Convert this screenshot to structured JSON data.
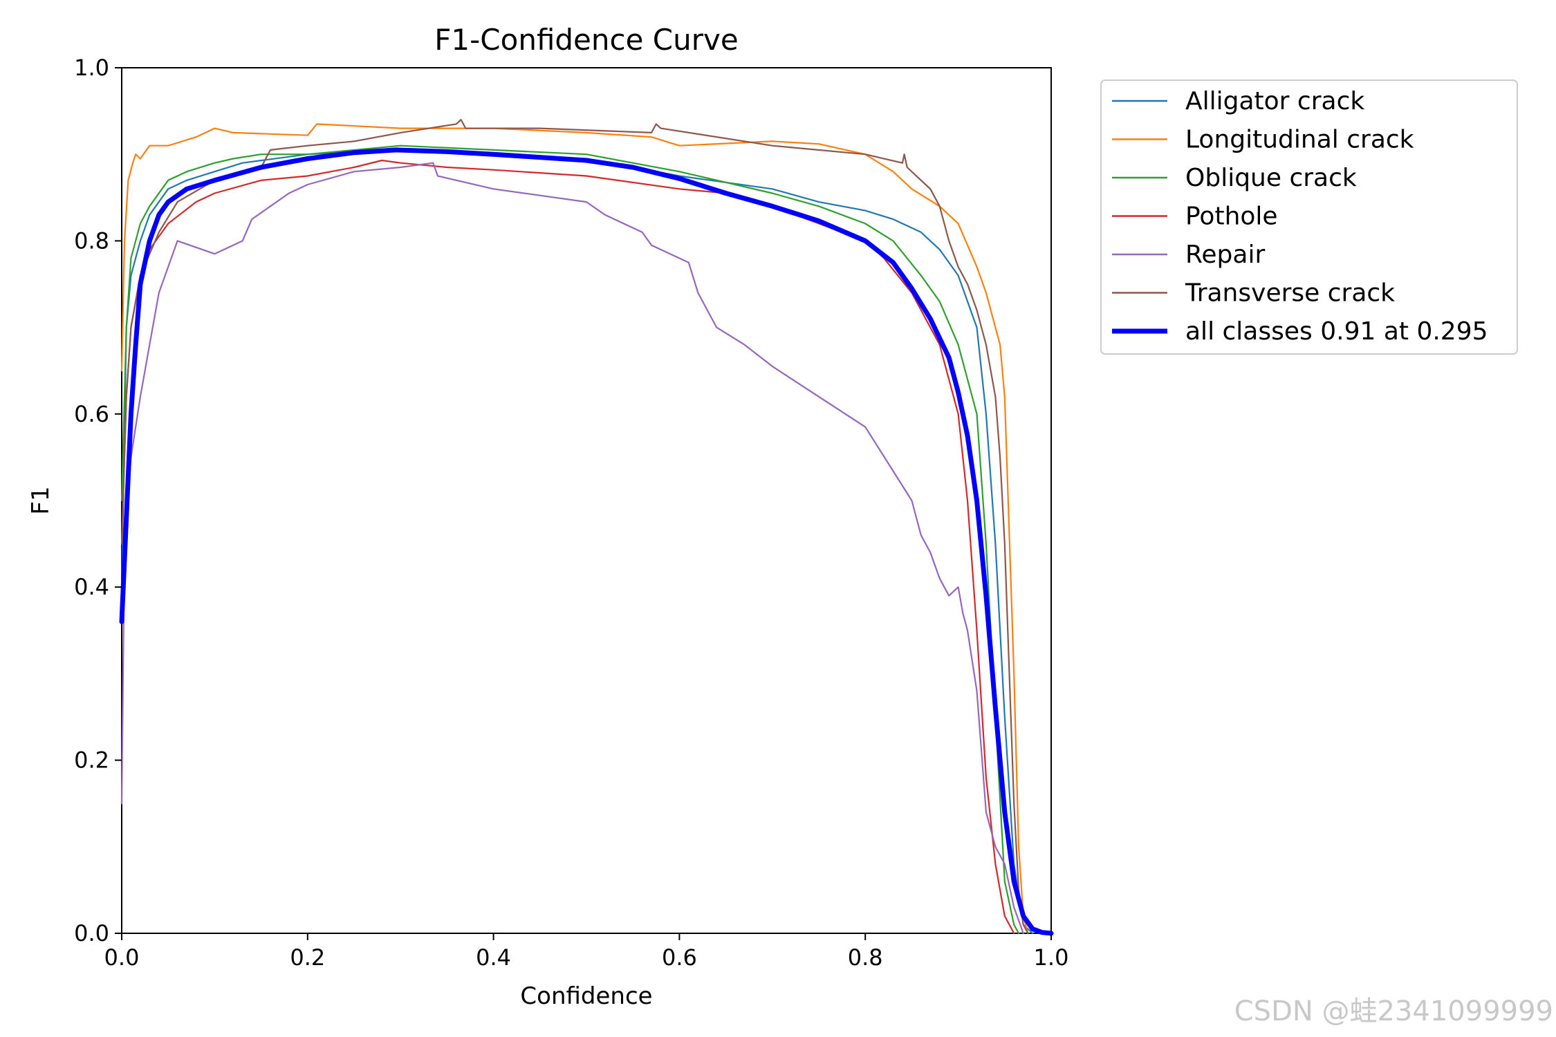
{
  "chart_data": {
    "type": "line",
    "title": "F1-Confidence Curve",
    "xlabel": "Confidence",
    "ylabel": "F1",
    "xlim": [
      0,
      1
    ],
    "ylim": [
      0,
      1
    ],
    "xticks": [
      "0.0",
      "0.2",
      "0.4",
      "0.6",
      "0.8",
      "1.0"
    ],
    "yticks": [
      "0.0",
      "0.2",
      "0.4",
      "0.6",
      "0.8",
      "1.0"
    ],
    "grid": false,
    "legend_position": "outside-right-top",
    "series": [
      {
        "name": "Alligator crack",
        "color": "#1f77b4",
        "width": 2.2,
        "x": [
          0,
          0.005,
          0.01,
          0.02,
          0.03,
          0.05,
          0.07,
          0.1,
          0.13,
          0.2,
          0.3,
          0.4,
          0.5,
          0.6,
          0.7,
          0.75,
          0.8,
          0.83,
          0.86,
          0.88,
          0.9,
          0.92,
          0.93,
          0.94,
          0.95,
          0.96,
          0.97,
          0.98
        ],
        "y": [
          0.4,
          0.7,
          0.76,
          0.8,
          0.83,
          0.86,
          0.87,
          0.88,
          0.89,
          0.9,
          0.905,
          0.9,
          0.895,
          0.875,
          0.86,
          0.845,
          0.835,
          0.825,
          0.81,
          0.79,
          0.76,
          0.7,
          0.6,
          0.45,
          0.25,
          0.08,
          0.01,
          0
        ]
      },
      {
        "name": "Longitudinal crack",
        "color": "#ff7f0e",
        "width": 2.2,
        "x": [
          0,
          0.003,
          0.007,
          0.012,
          0.015,
          0.02,
          0.03,
          0.05,
          0.08,
          0.1,
          0.12,
          0.2,
          0.21,
          0.3,
          0.4,
          0.5,
          0.57,
          0.6,
          0.7,
          0.75,
          0.8,
          0.83,
          0.85,
          0.88,
          0.9,
          0.92,
          0.93,
          0.945,
          0.95,
          0.96,
          0.965,
          0.97,
          0.975
        ],
        "y": [
          0.65,
          0.8,
          0.87,
          0.89,
          0.9,
          0.895,
          0.91,
          0.91,
          0.92,
          0.93,
          0.925,
          0.922,
          0.935,
          0.93,
          0.93,
          0.925,
          0.92,
          0.91,
          0.915,
          0.912,
          0.9,
          0.88,
          0.86,
          0.84,
          0.82,
          0.77,
          0.74,
          0.68,
          0.62,
          0.3,
          0.1,
          0.02,
          0
        ]
      },
      {
        "name": "Oblique crack",
        "color": "#2ca02c",
        "width": 2.2,
        "x": [
          0,
          0.005,
          0.01,
          0.02,
          0.03,
          0.05,
          0.07,
          0.1,
          0.12,
          0.15,
          0.2,
          0.3,
          0.4,
          0.5,
          0.6,
          0.7,
          0.75,
          0.8,
          0.83,
          0.86,
          0.88,
          0.9,
          0.92,
          0.93,
          0.94,
          0.95,
          0.96,
          0.965
        ],
        "y": [
          0.5,
          0.7,
          0.78,
          0.82,
          0.84,
          0.87,
          0.88,
          0.89,
          0.895,
          0.9,
          0.9,
          0.91,
          0.905,
          0.9,
          0.88,
          0.855,
          0.84,
          0.82,
          0.8,
          0.76,
          0.73,
          0.68,
          0.6,
          0.45,
          0.25,
          0.06,
          0.01,
          0
        ]
      },
      {
        "name": "Pothole",
        "color": "#d62728",
        "width": 2.2,
        "x": [
          0,
          0.005,
          0.01,
          0.02,
          0.03,
          0.05,
          0.08,
          0.1,
          0.15,
          0.2,
          0.25,
          0.28,
          0.3,
          0.35,
          0.4,
          0.5,
          0.6,
          0.65,
          0.7,
          0.75,
          0.8,
          0.82,
          0.85,
          0.88,
          0.9,
          0.91,
          0.92,
          0.93,
          0.94,
          0.95,
          0.96
        ],
        "y": [
          0.45,
          0.62,
          0.7,
          0.76,
          0.79,
          0.82,
          0.845,
          0.855,
          0.87,
          0.875,
          0.885,
          0.893,
          0.89,
          0.885,
          0.882,
          0.875,
          0.86,
          0.855,
          0.84,
          0.82,
          0.8,
          0.78,
          0.74,
          0.68,
          0.6,
          0.5,
          0.35,
          0.18,
          0.08,
          0.02,
          0
        ]
      },
      {
        "name": "Repair",
        "color": "#9467bd",
        "width": 2.2,
        "x": [
          0,
          0.003,
          0.01,
          0.02,
          0.03,
          0.04,
          0.05,
          0.06,
          0.1,
          0.13,
          0.14,
          0.16,
          0.18,
          0.2,
          0.25,
          0.3,
          0.335,
          0.34,
          0.4,
          0.5,
          0.52,
          0.56,
          0.57,
          0.61,
          0.62,
          0.64,
          0.67,
          0.7,
          0.75,
          0.8,
          0.85,
          0.86,
          0.87,
          0.88,
          0.89,
          0.9,
          0.905,
          0.91,
          0.92,
          0.93,
          0.94,
          0.95,
          0.96,
          0.97
        ],
        "y": [
          0.15,
          0.45,
          0.55,
          0.62,
          0.68,
          0.74,
          0.77,
          0.8,
          0.785,
          0.8,
          0.825,
          0.84,
          0.855,
          0.865,
          0.88,
          0.885,
          0.89,
          0.875,
          0.86,
          0.845,
          0.83,
          0.81,
          0.795,
          0.775,
          0.74,
          0.7,
          0.68,
          0.655,
          0.62,
          0.585,
          0.5,
          0.46,
          0.44,
          0.41,
          0.39,
          0.4,
          0.37,
          0.35,
          0.28,
          0.14,
          0.1,
          0.08,
          0.03,
          0
        ]
      },
      {
        "name": "Transverse crack",
        "color": "#8c564b",
        "width": 2.2,
        "x": [
          0,
          0.005,
          0.01,
          0.02,
          0.04,
          0.06,
          0.1,
          0.15,
          0.16,
          0.2,
          0.25,
          0.3,
          0.36,
          0.365,
          0.37,
          0.45,
          0.57,
          0.575,
          0.58,
          0.7,
          0.8,
          0.84,
          0.842,
          0.845,
          0.86,
          0.87,
          0.88,
          0.89,
          0.9,
          0.91,
          0.92,
          0.93,
          0.935,
          0.94,
          0.945,
          0.95,
          0.955,
          0.96,
          0.965,
          0.97,
          0.975
        ],
        "y": [
          0.45,
          0.62,
          0.7,
          0.76,
          0.81,
          0.845,
          0.87,
          0.885,
          0.905,
          0.91,
          0.915,
          0.925,
          0.935,
          0.94,
          0.93,
          0.93,
          0.925,
          0.935,
          0.93,
          0.91,
          0.9,
          0.89,
          0.9,
          0.885,
          0.87,
          0.86,
          0.84,
          0.8,
          0.77,
          0.75,
          0.72,
          0.68,
          0.65,
          0.62,
          0.55,
          0.45,
          0.3,
          0.15,
          0.05,
          0.01,
          0
        ]
      },
      {
        "name": "all classes 0.91 at 0.295",
        "color": "#0000ff",
        "width": 7,
        "x": [
          0,
          0.005,
          0.01,
          0.015,
          0.02,
          0.03,
          0.04,
          0.05,
          0.07,
          0.1,
          0.15,
          0.2,
          0.25,
          0.295,
          0.35,
          0.4,
          0.5,
          0.55,
          0.6,
          0.65,
          0.7,
          0.75,
          0.8,
          0.83,
          0.85,
          0.87,
          0.89,
          0.9,
          0.91,
          0.92,
          0.93,
          0.94,
          0.95,
          0.96,
          0.97,
          0.98,
          0.99,
          1.0
        ],
        "y": [
          0.36,
          0.48,
          0.6,
          0.68,
          0.75,
          0.8,
          0.83,
          0.845,
          0.86,
          0.87,
          0.885,
          0.895,
          0.902,
          0.905,
          0.903,
          0.9,
          0.893,
          0.885,
          0.872,
          0.855,
          0.84,
          0.823,
          0.8,
          0.775,
          0.745,
          0.71,
          0.665,
          0.625,
          0.575,
          0.5,
          0.39,
          0.26,
          0.14,
          0.06,
          0.02,
          0.005,
          0.001,
          0
        ]
      }
    ]
  },
  "watermark": "CSDN @蛙2341099999"
}
